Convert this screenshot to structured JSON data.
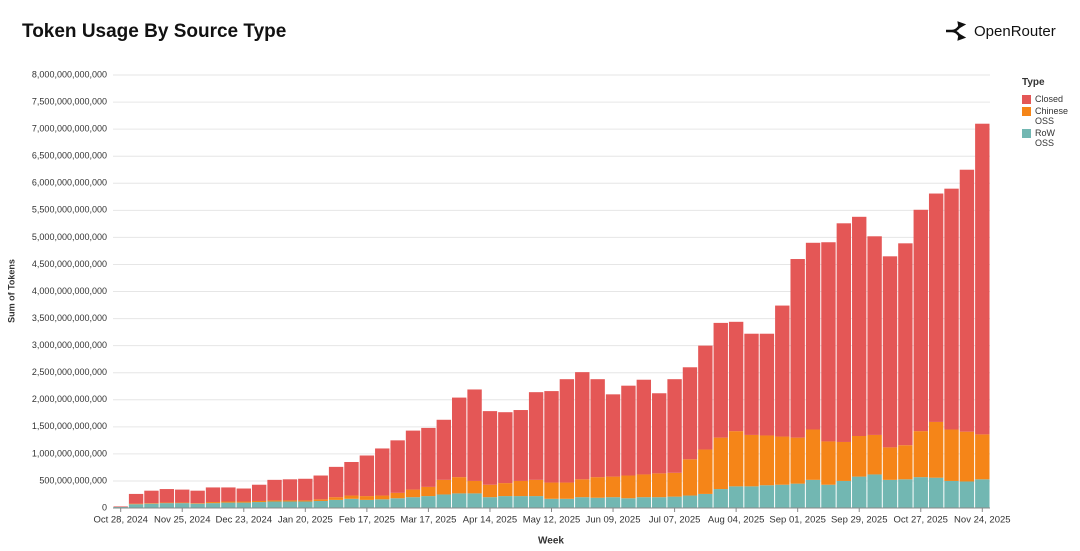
{
  "header": {
    "logo": "OpenRouter"
  },
  "chart_data": {
    "type": "stacked_bar",
    "title": "Token Usage By Source Type",
    "x_label": "Week",
    "y_label": "Sum of Tokens",
    "legend_title": "Type",
    "legend_position": "right",
    "grid": true,
    "categories": [
      "Oct 28, 2024",
      null,
      null,
      null,
      "Nov 25, 2024",
      null,
      null,
      null,
      "Dec 23, 2024",
      null,
      null,
      null,
      "Jan 20, 2025",
      null,
      null,
      null,
      "Feb 17, 2025",
      null,
      null,
      null,
      "Mar 17, 2025",
      null,
      null,
      null,
      "Apr 14, 2025",
      null,
      null,
      null,
      "May 12, 2025",
      null,
      null,
      null,
      "Jun 09, 2025",
      null,
      null,
      null,
      "Jul 07, 2025",
      null,
      null,
      null,
      "Aug 04, 2025",
      null,
      null,
      null,
      "Sep 01, 2025",
      null,
      null,
      null,
      "Sep 29, 2025",
      null,
      null,
      null,
      "Oct 27, 2025",
      null,
      null,
      null,
      "Nov 24, 2025"
    ],
    "series": [
      {
        "name": "Closed",
        "color": "#e45756",
        "values": [
          10000000000.0,
          180000000000.0,
          230000000000.0,
          250000000000.0,
          240000000000.0,
          230000000000.0,
          270000000000.0,
          260000000000.0,
          240000000000.0,
          300000000000.0,
          380000000000.0,
          390000000000.0,
          400000000000.0,
          440000000000.0,
          560000000000.0,
          620000000000.0,
          750000000000.0,
          870000000000.0,
          970000000000.0,
          1090000000000.0,
          1090000000000.0,
          1110000000000.0,
          1470000000000.0,
          1690000000000.0,
          1360000000000.0,
          1310000000000.0,
          1310000000000.0,
          1620000000000.0,
          1690000000000.0,
          1910000000000.0,
          1980000000000.0,
          1810000000000.0,
          1520000000000.0,
          1660000000000.0,
          1750000000000.0,
          1480000000000.0,
          1730000000000.0,
          1700000000000.0,
          1920000000000.0,
          2120000000000.0,
          2020000000000.0,
          1870000000000.0,
          1880000000000.0,
          2420000000000.0,
          3300000000000.0,
          3450000000000.0,
          3680000000000.0,
          4040000000000.0,
          4050000000000.0,
          3670000000000.0,
          3530000000000.0,
          3730000000000.0,
          4090000000000.0,
          4220000000000.0,
          4450000000000.0,
          4840000000000.0,
          5740000000000.0
        ]
      },
      {
        "name": "Chinese OSS",
        "color": "#f58518",
        "values": [
          0,
          10000000000.0,
          10000000000.0,
          10000000000.0,
          10000000000.0,
          10000000000.0,
          20000000000.0,
          20000000000.0,
          20000000000.0,
          20000000000.0,
          20000000000.0,
          20000000000.0,
          20000000000.0,
          30000000000.0,
          50000000000.0,
          60000000000.0,
          70000000000.0,
          70000000000.0,
          100000000000.0,
          140000000000.0,
          170000000000.0,
          270000000000.0,
          300000000000.0,
          230000000000.0,
          230000000000.0,
          240000000000.0,
          280000000000.0,
          300000000000.0,
          300000000000.0,
          300000000000.0,
          330000000000.0,
          380000000000.0,
          380000000000.0,
          420000000000.0,
          420000000000.0,
          440000000000.0,
          440000000000.0,
          670000000000.0,
          820000000000.0,
          950000000000.0,
          1020000000000.0,
          950000000000.0,
          920000000000.0,
          890000000000.0,
          850000000000.0,
          930000000000.0,
          800000000000.0,
          720000000000.0,
          750000000000.0,
          730000000000.0,
          600000000000.0,
          630000000000.0,
          850000000000.0,
          1030000000000.0,
          950000000000.0,
          920000000000.0,
          830000000000.0
        ]
      },
      {
        "name": "RoW OSS",
        "color": "#72b7b2",
        "values": [
          20000000000.0,
          70000000000.0,
          80000000000.0,
          90000000000.0,
          90000000000.0,
          80000000000.0,
          90000000000.0,
          100000000000.0,
          100000000000.0,
          110000000000.0,
          120000000000.0,
          120000000000.0,
          120000000000.0,
          130000000000.0,
          150000000000.0,
          170000000000.0,
          150000000000.0,
          160000000000.0,
          180000000000.0,
          200000000000.0,
          220000000000.0,
          250000000000.0,
          270000000000.0,
          270000000000.0,
          200000000000.0,
          220000000000.0,
          220000000000.0,
          220000000000.0,
          170000000000.0,
          170000000000.0,
          200000000000.0,
          190000000000.0,
          200000000000.0,
          180000000000.0,
          200000000000.0,
          200000000000.0,
          210000000000.0,
          230000000000.0,
          260000000000.0,
          350000000000.0,
          400000000000.0,
          400000000000.0,
          420000000000.0,
          430000000000.0,
          450000000000.0,
          520000000000.0,
          430000000000.0,
          500000000000.0,
          580000000000.0,
          620000000000.0,
          520000000000.0,
          530000000000.0,
          570000000000.0,
          560000000000.0,
          500000000000.0,
          490000000000.0,
          530000000000.0
        ]
      }
    ],
    "ylim": [
      0,
      8000000000000
    ],
    "yticks": [
      0,
      {
        "value": 500000000000,
        "label": "500,000,000,000"
      },
      {
        "value": 1000000000000,
        "label": "1,000,000,000,000"
      },
      {
        "value": 1500000000000,
        "label": "1,500,000,000,000"
      },
      {
        "value": 2000000000000,
        "label": "2,000,000,000,000"
      },
      {
        "value": 2500000000000,
        "label": "2,500,000,000,000"
      },
      {
        "value": 3000000000000,
        "label": "3,000,000,000,000"
      },
      {
        "value": 3500000000000,
        "label": "3,500,000,000,000"
      },
      {
        "value": 4000000000000,
        "label": "4,000,000,000,000"
      },
      {
        "value": 4500000000000,
        "label": "4,500,000,000,000"
      },
      {
        "value": 5000000000000,
        "label": "5,000,000,000,000"
      },
      {
        "value": 5500000000000,
        "label": "5,500,000,000,000"
      },
      {
        "value": 6000000000000,
        "label": "6,000,000,000,000"
      },
      {
        "value": 6500000000000,
        "label": "6,500,000,000,000"
      },
      {
        "value": 7000000000000,
        "label": "7,000,000,000,000"
      },
      {
        "value": 7500000000000,
        "label": "7,500,000,000,000"
      },
      {
        "value": 8000000000000,
        "label": "8,000,000,000,000"
      }
    ]
  }
}
